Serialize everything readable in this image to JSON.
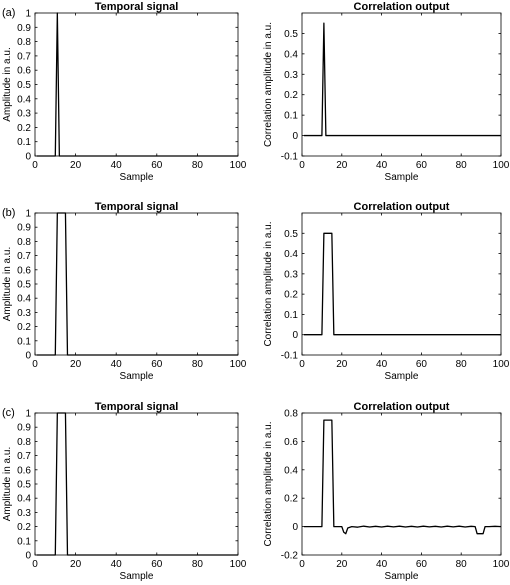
{
  "chart_data": [
    {
      "panel": "(a)",
      "type": "line",
      "title": "Temporal signal",
      "xlabel": "Sample",
      "ylabel": "Amplitude in a.u.",
      "xlim": [
        0,
        100
      ],
      "ylim": [
        0,
        1
      ],
      "xticks": [
        0,
        20,
        40,
        60,
        80,
        100
      ],
      "yticks": [
        0,
        0.1,
        0.2,
        0.3,
        0.4,
        0.5,
        0.6,
        0.7,
        0.8,
        0.9,
        1
      ],
      "series": [
        {
          "x": [
            1,
            10,
            11,
            12,
            100
          ],
          "y": [
            0,
            0,
            1,
            0,
            0
          ]
        }
      ]
    },
    {
      "panel": "",
      "type": "line",
      "title": "Correlation output",
      "xlabel": "Sample",
      "ylabel": "Correlation amplitude in a.u.",
      "xlim": [
        0,
        100
      ],
      "ylim": [
        -0.1,
        0.6
      ],
      "xticks": [
        0,
        20,
        40,
        60,
        80,
        100
      ],
      "yticks": [
        -0.1,
        0,
        0.1,
        0.2,
        0.3,
        0.4,
        0.5
      ],
      "series": [
        {
          "x": [
            1,
            10,
            11,
            12,
            100
          ],
          "y": [
            0,
            0,
            0.55,
            0,
            0
          ]
        }
      ]
    },
    {
      "panel": "(b)",
      "type": "line",
      "title": "Temporal signal",
      "xlabel": "Sample",
      "ylabel": "Amplitude in a.u.",
      "xlim": [
        0,
        100
      ],
      "ylim": [
        0,
        1
      ],
      "xticks": [
        0,
        20,
        40,
        60,
        80,
        100
      ],
      "yticks": [
        0,
        0.1,
        0.2,
        0.3,
        0.4,
        0.5,
        0.6,
        0.7,
        0.8,
        0.9,
        1
      ],
      "series": [
        {
          "x": [
            1,
            10,
            11,
            15,
            16,
            100
          ],
          "y": [
            0,
            0,
            1,
            1,
            0,
            0
          ]
        }
      ]
    },
    {
      "panel": "",
      "type": "line",
      "title": "Correlation output",
      "xlabel": "Sample",
      "ylabel": "Correlation amplitude in a.u.",
      "xlim": [
        0,
        100
      ],
      "ylim": [
        -0.1,
        0.6
      ],
      "xticks": [
        0,
        20,
        40,
        60,
        80,
        100
      ],
      "yticks": [
        -0.1,
        0,
        0.1,
        0.2,
        0.3,
        0.4,
        0.5
      ],
      "series": [
        {
          "x": [
            1,
            10,
            11,
            15,
            16,
            100
          ],
          "y": [
            0,
            0,
            0.5,
            0.5,
            0,
            0
          ]
        }
      ]
    },
    {
      "panel": "(c)",
      "type": "line",
      "title": "Temporal signal",
      "xlabel": "Sample",
      "ylabel": "Amplitude in a.u.",
      "xlim": [
        0,
        100
      ],
      "ylim": [
        0,
        1
      ],
      "xticks": [
        0,
        20,
        40,
        60,
        80,
        100
      ],
      "yticks": [
        0,
        0.1,
        0.2,
        0.3,
        0.4,
        0.5,
        0.6,
        0.7,
        0.8,
        0.9,
        1
      ],
      "series": [
        {
          "x": [
            1,
            10,
            11,
            15,
            16,
            100
          ],
          "y": [
            0,
            0,
            1,
            1,
            0,
            0
          ]
        }
      ]
    },
    {
      "panel": "",
      "type": "line",
      "title": "Correlation output",
      "xlabel": "Sample",
      "ylabel": "Correlation amplitude in a.u.",
      "xlim": [
        0,
        100
      ],
      "ylim": [
        -0.2,
        0.8
      ],
      "xticks": [
        0,
        20,
        40,
        60,
        80,
        100
      ],
      "yticks": [
        -0.2,
        0,
        0.2,
        0.4,
        0.6,
        0.8
      ],
      "series": [
        {
          "x": [
            1,
            10,
            11,
            15,
            16,
            18,
            20,
            21,
            22,
            23,
            25,
            28,
            31,
            34,
            37,
            40,
            43,
            46,
            49,
            52,
            55,
            58,
            61,
            64,
            67,
            70,
            73,
            76,
            79,
            82,
            85,
            87,
            88,
            89,
            90,
            91,
            92,
            94,
            97,
            100
          ],
          "y": [
            0,
            0,
            0.75,
            0.75,
            0,
            0,
            0,
            -0.04,
            -0.05,
            -0.01,
            0,
            -0.004,
            0.003,
            -0.003,
            0.002,
            -0.003,
            0.003,
            -0.002,
            0.003,
            -0.003,
            0.002,
            -0.003,
            0.003,
            -0.002,
            0.002,
            -0.003,
            0.003,
            -0.002,
            0.003,
            -0.003,
            0.002,
            0,
            -0.05,
            -0.05,
            -0.05,
            -0.05,
            0,
            0,
            0.002,
            0
          ]
        }
      ]
    }
  ]
}
